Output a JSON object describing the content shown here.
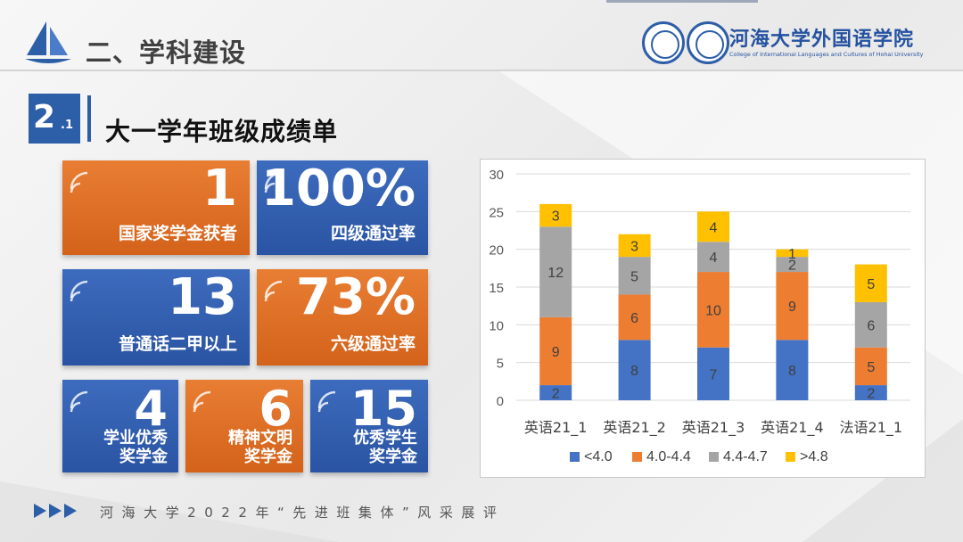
{
  "header": {
    "title": "二、学科建设"
  },
  "logo": {
    "name": "河海大学外国语学院",
    "subtitle": "College of International Languages and Cultures of Hohai University"
  },
  "section": {
    "number": "2",
    "sub": ".1",
    "title": "大一学年班级成绩单"
  },
  "stats": [
    {
      "value": "1",
      "label": "国家奖学金获者"
    },
    {
      "value": "100%",
      "label": "四级通过率"
    },
    {
      "value": "13",
      "label": "普通话二甲以上"
    },
    {
      "value": "73%",
      "label": "六级通过率"
    },
    {
      "value": "4",
      "label_line1": "学业优秀",
      "label_line2": "奖学金"
    },
    {
      "value": "6",
      "label_line1": "精神文明",
      "label_line2": "奖学金"
    },
    {
      "value": "15",
      "label_line1": "优秀学生",
      "label_line2": "奖学金"
    }
  ],
  "chart_data": {
    "type": "bar",
    "stacked": true,
    "categories": [
      "英语21_1",
      "英语21_2",
      "英语21_3",
      "英语21_4",
      "法语21_1"
    ],
    "series": [
      {
        "name": "<4.0",
        "values": [
          2,
          8,
          7,
          8,
          2
        ],
        "color": "#4472c4"
      },
      {
        "name": "4.0-4.4",
        "values": [
          9,
          6,
          10,
          9,
          5
        ],
        "color": "#ed7d31"
      },
      {
        "name": "4.4-4.7",
        "values": [
          12,
          5,
          4,
          2,
          6
        ],
        "color": "#a5a5a5"
      },
      {
        "name": ">4.8",
        "values": [
          3,
          3,
          4,
          1,
          5
        ],
        "color": "#ffc000"
      }
    ],
    "ylim": [
      0,
      30
    ],
    "yticks": [
      "0",
      "5",
      "10",
      "15",
      "20",
      "25",
      "30"
    ],
    "grid": true,
    "legend": "bottom"
  },
  "footer": {
    "text": "河  海  大  学  2  0  2  2  年  “  先  进  班  集  体  ”  风  采  展  评"
  },
  "colors": {
    "orange": "#e07027",
    "blue": "#2d5ea8"
  }
}
